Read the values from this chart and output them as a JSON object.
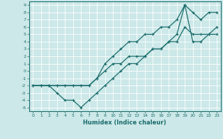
{
  "xlabel": "Humidex (Indice chaleur)",
  "bg_color": "#cce8e8",
  "grid_color": "#aad4d4",
  "line_color": "#1a6b6b",
  "xlim": [
    -0.5,
    23.5
  ],
  "ylim": [
    -5.5,
    9.5
  ],
  "xticks": [
    0,
    1,
    2,
    3,
    4,
    5,
    6,
    7,
    8,
    9,
    10,
    11,
    12,
    13,
    14,
    15,
    16,
    17,
    18,
    19,
    20,
    21,
    22,
    23
  ],
  "yticks": [
    -5,
    -4,
    -3,
    -2,
    -1,
    0,
    1,
    2,
    3,
    4,
    5,
    6,
    7,
    8,
    9
  ],
  "line_min_x": [
    0,
    1,
    2,
    3,
    4,
    5,
    6,
    7,
    8,
    9,
    10,
    11,
    12,
    13,
    14,
    15,
    16,
    17,
    18,
    19,
    20,
    21,
    22,
    23
  ],
  "line_min_y": [
    -2,
    -2,
    -2,
    -3,
    -4,
    -4,
    -5,
    -4,
    -3,
    -2,
    -1,
    0,
    1,
    1,
    2,
    3,
    3,
    4,
    5,
    9,
    4,
    4,
    5,
    5
  ],
  "line_mean_x": [
    0,
    1,
    2,
    3,
    4,
    5,
    6,
    7,
    8,
    9,
    10,
    11,
    12,
    13,
    14,
    15,
    16,
    17,
    18,
    19,
    20,
    21,
    22,
    23
  ],
  "line_mean_y": [
    -2,
    -2,
    -2,
    -2,
    -2,
    -2,
    -2,
    -2,
    -1,
    0,
    1,
    1,
    2,
    2,
    2,
    3,
    3,
    4,
    4,
    6,
    5,
    5,
    5,
    6
  ],
  "line_max_x": [
    0,
    1,
    2,
    3,
    4,
    5,
    6,
    7,
    8,
    9,
    10,
    11,
    12,
    13,
    14,
    15,
    16,
    17,
    18,
    19,
    20,
    21,
    22,
    23
  ],
  "line_max_y": [
    -2,
    -2,
    -2,
    -2,
    -2,
    -2,
    -2,
    -2,
    -1,
    1,
    2,
    3,
    4,
    4,
    5,
    5,
    6,
    6,
    7,
    9,
    8,
    7,
    8,
    8
  ]
}
